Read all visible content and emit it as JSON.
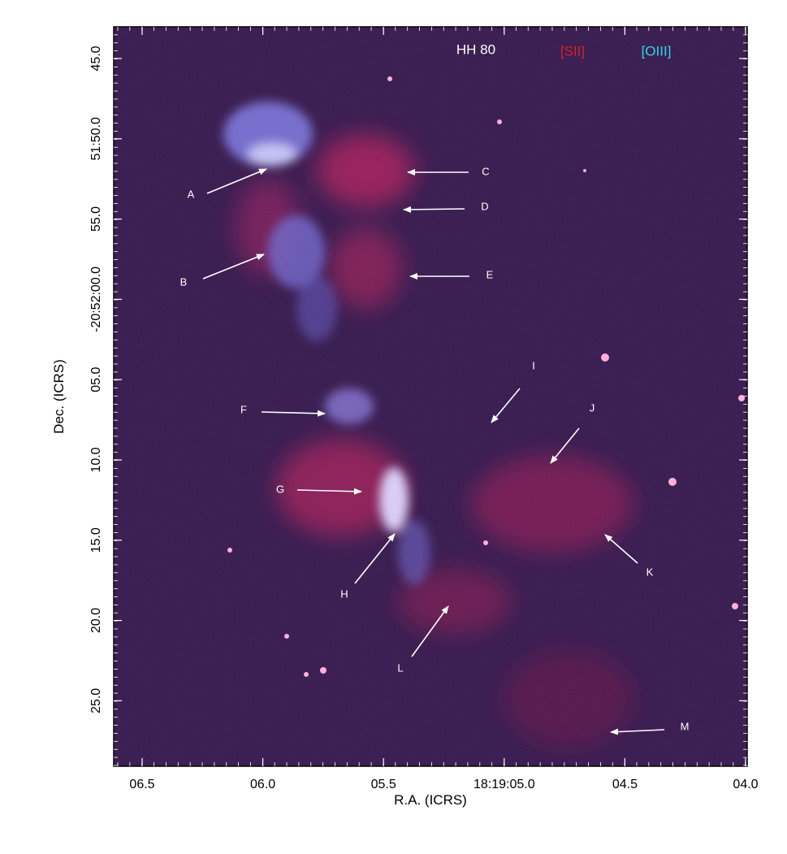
{
  "title": "HH 80",
  "legend": [
    "[SII]",
    "[OIII]"
  ],
  "x_axis": {
    "label": "R.A. (ICRS)",
    "ticks": [
      "06.5",
      "06.0",
      "05.5",
      "18:19:05.0",
      "04.5",
      "04.0"
    ]
  },
  "y_axis": {
    "label": "Dec. (ICRS)",
    "ticks": [
      "45.0",
      "51:50.0",
      "55.0",
      "-20:52:00.0",
      "05.0",
      "10.0",
      "15.0",
      "20.0",
      "25.0"
    ]
  },
  "annotations": [
    "A",
    "B",
    "C",
    "D",
    "E",
    "F",
    "G",
    "H",
    "I",
    "J",
    "K",
    "L",
    "M"
  ]
}
